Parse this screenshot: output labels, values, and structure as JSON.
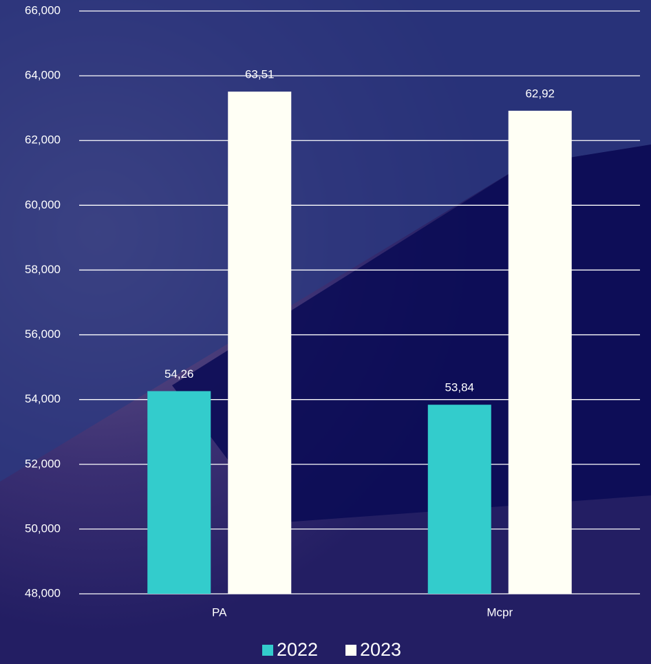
{
  "chart_data": {
    "type": "bar",
    "categories": [
      "PA",
      "Mcpr"
    ],
    "series": [
      {
        "name": "2022",
        "color": "#33cccc",
        "values": [
          54260,
          53840
        ],
        "value_labels": [
          "54,26",
          "53,84"
        ]
      },
      {
        "name": "2023",
        "color": "#fffff5",
        "values": [
          63510,
          62920
        ],
        "value_labels": [
          "63,51",
          "62,92"
        ]
      }
    ],
    "ylim": [
      48000,
      66000
    ],
    "yticks": [
      {
        "value": 48000,
        "label": "48,000"
      },
      {
        "value": 50000,
        "label": "50,000"
      },
      {
        "value": 52000,
        "label": "52,000"
      },
      {
        "value": 54000,
        "label": "54,000"
      },
      {
        "value": 56000,
        "label": "56,000"
      },
      {
        "value": 58000,
        "label": "58,000"
      },
      {
        "value": 60000,
        "label": "60,000"
      },
      {
        "value": 62000,
        "label": "62,000"
      },
      {
        "value": 64000,
        "label": "64,000"
      },
      {
        "value": 66000,
        "label": "66,000"
      }
    ],
    "grid": true,
    "legend": "bottom"
  }
}
